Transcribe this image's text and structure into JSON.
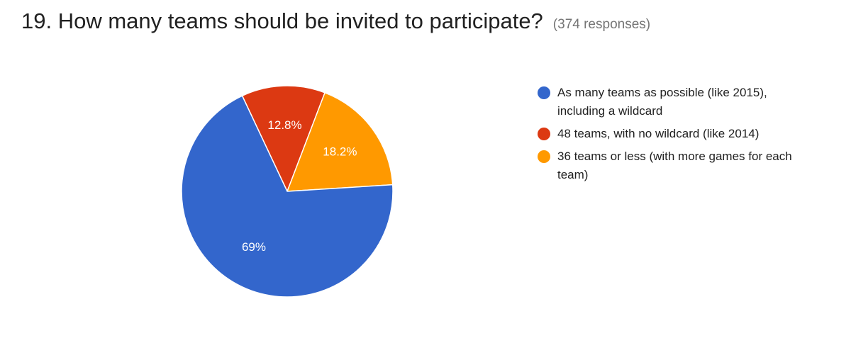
{
  "question": "19. How many teams should be invited to participate?",
  "responses": "(374 responses)",
  "chart_data": {
    "type": "pie",
    "title": "19. How many teams should be invited to participate?",
    "legend_position": "right",
    "slices": [
      {
        "label": "As many teams as possible (like 2015), including a wildcard",
        "value": 69.0,
        "display": "69%",
        "color": "#3366cc"
      },
      {
        "label": "48 teams, with no wildcard (like 2014)",
        "value": 12.8,
        "display": "12.8%",
        "color": "#dc3912"
      },
      {
        "label": "36 teams or less (with more games for each team)",
        "value": 18.2,
        "display": "18.2%",
        "color": "#ff9900"
      }
    ]
  }
}
